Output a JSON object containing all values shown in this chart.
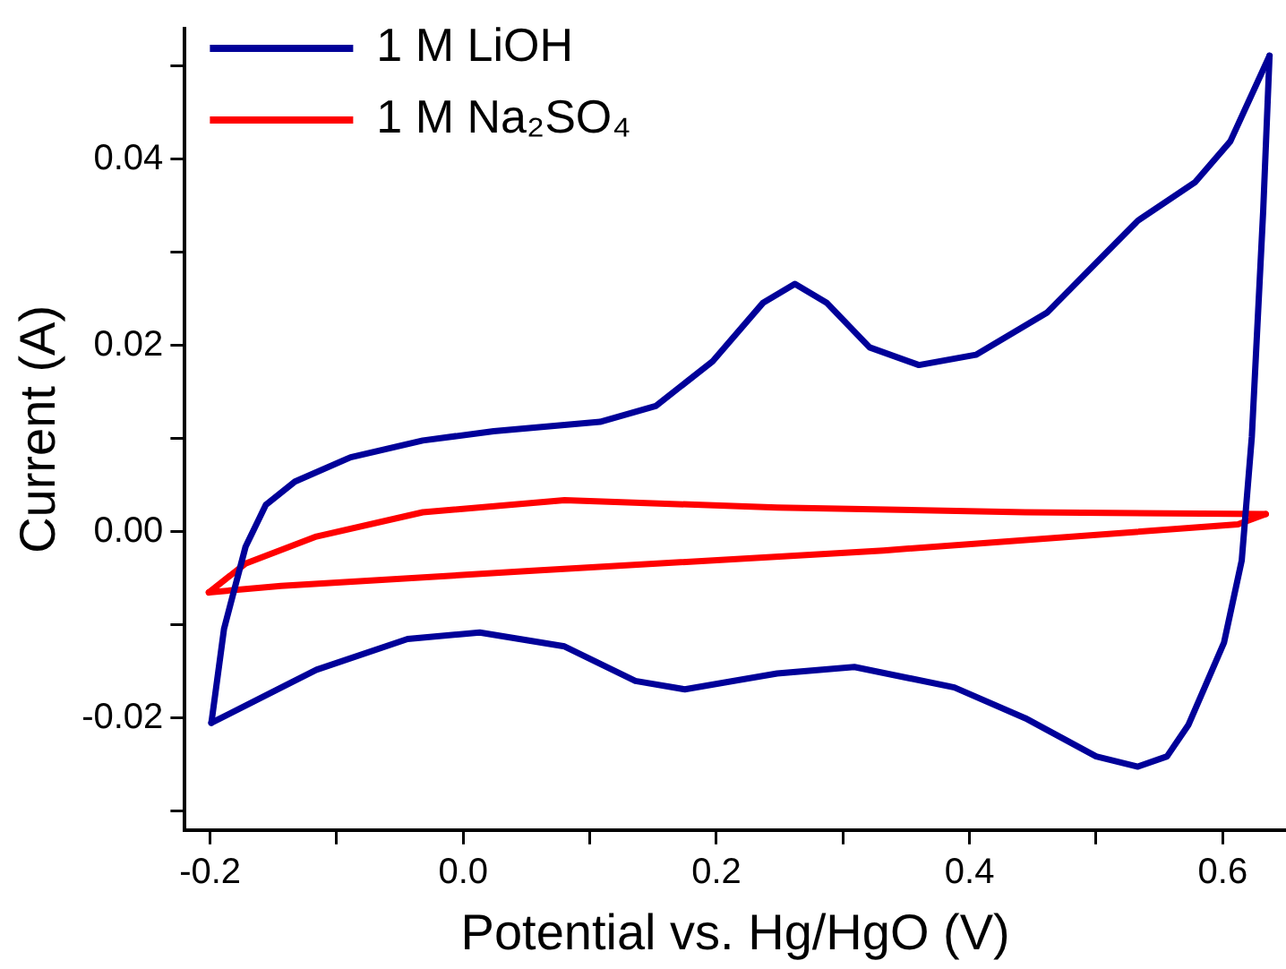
{
  "chart_data": {
    "type": "line",
    "xlabel": "Potential vs. Hg/HgO (V)",
    "ylabel": "Current (A)",
    "xlim": [
      -0.22,
      0.65
    ],
    "ylim": [
      -0.032,
      0.054
    ],
    "xticks": [
      -0.2,
      {
        "value": -0.1,
        "label": null
      },
      "0.0",
      {
        "value": 0.1,
        "label": null
      },
      0.2,
      {
        "value": 0.3,
        "label": null
      },
      0.4,
      {
        "value": 0.5,
        "label": null
      },
      0.6
    ],
    "yticks": [
      {
        "value": -0.03,
        "label": null
      },
      {
        "value": -0.02,
        "label": "-0.02"
      },
      {
        "value": -0.01,
        "label": null
      },
      {
        "value": 0,
        "label": "0.00"
      },
      {
        "value": 0.01,
        "label": null
      },
      {
        "value": 0.02,
        "label": "0.02"
      },
      {
        "value": 0.03,
        "label": null
      },
      {
        "value": 0.04,
        "label": "0.04"
      },
      {
        "value": 0.05,
        "label": null
      }
    ],
    "grid": false,
    "legend": "top left",
    "marker": "none",
    "line_style": "solid",
    "series": [
      {
        "name": "1 M LiOH",
        "color": "#000099",
        "x": [
          -0.199,
          -0.189,
          -0.172,
          -0.156,
          -0.133,
          -0.089,
          -0.032,
          0.024,
          0.108,
          0.152,
          0.197,
          0.237,
          0.262,
          0.287,
          0.321,
          0.36,
          0.405,
          0.461,
          0.533,
          0.578,
          0.606,
          0.637
        ],
        "values": [
          -0.0205,
          -0.0104,
          -0.0016,
          0.0029,
          0.0054,
          0.008,
          0.0098,
          0.0108,
          0.0118,
          0.0135,
          0.0183,
          0.0246,
          0.0266,
          0.0246,
          0.0198,
          0.0179,
          0.019,
          0.0235,
          0.0334,
          0.0375,
          0.0419,
          0.0511
        ]
      },
      {
        "color": "#000099",
        "x": [
          0.637,
          0.632,
          0.623,
          0.615,
          0.601,
          0.573,
          0.556,
          0.533,
          0.5,
          0.444,
          0.388,
          0.309,
          0.248,
          0.175,
          0.136,
          0.08,
          0.013,
          -0.044,
          -0.116,
          -0.199
        ],
        "values": [
          0.0511,
          0.0345,
          0.0102,
          -0.0031,
          -0.0119,
          -0.0207,
          -0.0241,
          -0.0252,
          -0.0241,
          -0.02,
          -0.0167,
          -0.0145,
          -0.0152,
          -0.0169,
          -0.016,
          -0.0123,
          -0.0108,
          -0.0115,
          -0.0148,
          -0.0205
        ]
      },
      {
        "name": "1 M Na₂SO₄",
        "color": "#ff0000",
        "x": [
          -0.201,
          -0.172,
          -0.116,
          -0.032,
          0.08,
          0.248,
          0.444,
          0.634
        ],
        "values": [
          -0.0065,
          -0.0034,
          -0.0005,
          0.0021,
          0.0034,
          0.0026,
          0.0021,
          0.0019
        ]
      },
      {
        "color": "#ff0000",
        "x": [
          0.634,
          0.612,
          0.332,
          0.052,
          -0.144,
          -0.201
        ],
        "values": [
          0.0019,
          0.0008,
          -0.002,
          -0.0042,
          -0.0058,
          -0.0065
        ]
      }
    ]
  }
}
